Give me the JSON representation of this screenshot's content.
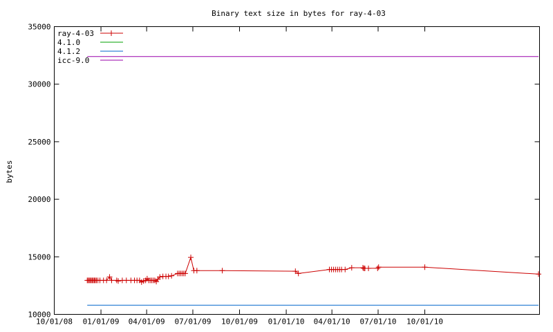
{
  "chart_data": {
    "type": "line",
    "title": "Binary text size in bytes for ray-4-03",
    "ylabel": "bytes",
    "xlabel": "",
    "ylim": [
      10000,
      35000
    ],
    "yticks": [
      10000,
      15000,
      20000,
      25000,
      30000,
      35000
    ],
    "xlim": [
      "2008-10-01",
      "2011-05-15"
    ],
    "xticks": [
      {
        "date": "2008-10-01",
        "label": "10/01/08"
      },
      {
        "date": "2009-01-01",
        "label": "01/01/09"
      },
      {
        "date": "2009-04-01",
        "label": "04/01/09"
      },
      {
        "date": "2009-07-01",
        "label": "07/01/09"
      },
      {
        "date": "2009-10-01",
        "label": "10/01/09"
      },
      {
        "date": "2010-01-01",
        "label": "01/01/10"
      },
      {
        "date": "2010-04-01",
        "label": "04/01/10"
      },
      {
        "date": "2010-07-01",
        "label": "07/01/10"
      },
      {
        "date": "2010-10-01",
        "label": "10/01/10"
      }
    ],
    "legend_position": "top-left",
    "grid": false,
    "series": [
      {
        "name": "ray-4-03",
        "color": "#cc0000",
        "marker": "plus",
        "points": [
          [
            "2008-12-05",
            12950
          ],
          [
            "2008-12-07",
            12950
          ],
          [
            "2008-12-09",
            12950
          ],
          [
            "2008-12-11",
            12950
          ],
          [
            "2008-12-13",
            12950
          ],
          [
            "2008-12-15",
            12950
          ],
          [
            "2008-12-17",
            12950
          ],
          [
            "2008-12-19",
            12950
          ],
          [
            "2008-12-21",
            12950
          ],
          [
            "2008-12-23",
            12950
          ],
          [
            "2008-12-26",
            12950
          ],
          [
            "2008-12-30",
            12950
          ],
          [
            "2009-01-06",
            12950
          ],
          [
            "2009-01-12",
            12950
          ],
          [
            "2009-01-18",
            13250
          ],
          [
            "2009-01-22",
            12950
          ],
          [
            "2009-02-01",
            12950
          ],
          [
            "2009-02-04",
            12900
          ],
          [
            "2009-02-12",
            12950
          ],
          [
            "2009-02-20",
            12950
          ],
          [
            "2009-03-01",
            12950
          ],
          [
            "2009-03-08",
            12950
          ],
          [
            "2009-03-13",
            12950
          ],
          [
            "2009-03-18",
            12950
          ],
          [
            "2009-03-22",
            12800
          ],
          [
            "2009-03-26",
            12900
          ],
          [
            "2009-03-30",
            12950
          ],
          [
            "2009-04-02",
            13100
          ],
          [
            "2009-04-05",
            12950
          ],
          [
            "2009-04-08",
            12950
          ],
          [
            "2009-04-11",
            12950
          ],
          [
            "2009-04-14",
            12950
          ],
          [
            "2009-04-17",
            12950
          ],
          [
            "2009-04-20",
            12850
          ],
          [
            "2009-04-23",
            13050
          ],
          [
            "2009-04-27",
            13250
          ],
          [
            "2009-05-03",
            13300
          ],
          [
            "2009-05-09",
            13300
          ],
          [
            "2009-05-14",
            13300
          ],
          [
            "2009-05-20",
            13350
          ],
          [
            "2009-06-01",
            13550
          ],
          [
            "2009-06-04",
            13550
          ],
          [
            "2009-06-07",
            13550
          ],
          [
            "2009-06-10",
            13550
          ],
          [
            "2009-06-13",
            13550
          ],
          [
            "2009-06-16",
            13550
          ],
          [
            "2009-06-27",
            14950
          ],
          [
            "2009-07-03",
            13800
          ],
          [
            "2009-07-09",
            13800
          ],
          [
            "2009-08-28",
            13800
          ],
          [
            "2010-01-19",
            13750
          ],
          [
            "2010-01-25",
            13550
          ],
          [
            "2010-03-27",
            13900
          ],
          [
            "2010-03-31",
            13900
          ],
          [
            "2010-04-04",
            13900
          ],
          [
            "2010-04-08",
            13900
          ],
          [
            "2010-04-12",
            13900
          ],
          [
            "2010-04-16",
            13900
          ],
          [
            "2010-04-20",
            13900
          ],
          [
            "2010-04-27",
            13900
          ],
          [
            "2010-05-10",
            14050
          ],
          [
            "2010-06-01",
            14050
          ],
          [
            "2010-06-03",
            14000
          ],
          [
            "2010-06-05",
            14000
          ],
          [
            "2010-06-12",
            14000
          ],
          [
            "2010-06-30",
            14000
          ],
          [
            "2010-07-02",
            14100
          ],
          [
            "2010-10-01",
            14100
          ],
          [
            "2011-05-13",
            13500
          ]
        ]
      },
      {
        "name": "4.1.0",
        "color": "#00a000",
        "marker": "none",
        "points": []
      },
      {
        "name": "4.1.2",
        "color": "#0066cc",
        "marker": "none",
        "points": [
          [
            "2008-12-05",
            10800
          ],
          [
            "2011-05-13",
            10800
          ]
        ]
      },
      {
        "name": "icc-9.0",
        "color": "#9900aa",
        "marker": "none",
        "points": [
          [
            "2008-12-05",
            32400
          ],
          [
            "2011-05-13",
            32400
          ]
        ]
      }
    ]
  }
}
